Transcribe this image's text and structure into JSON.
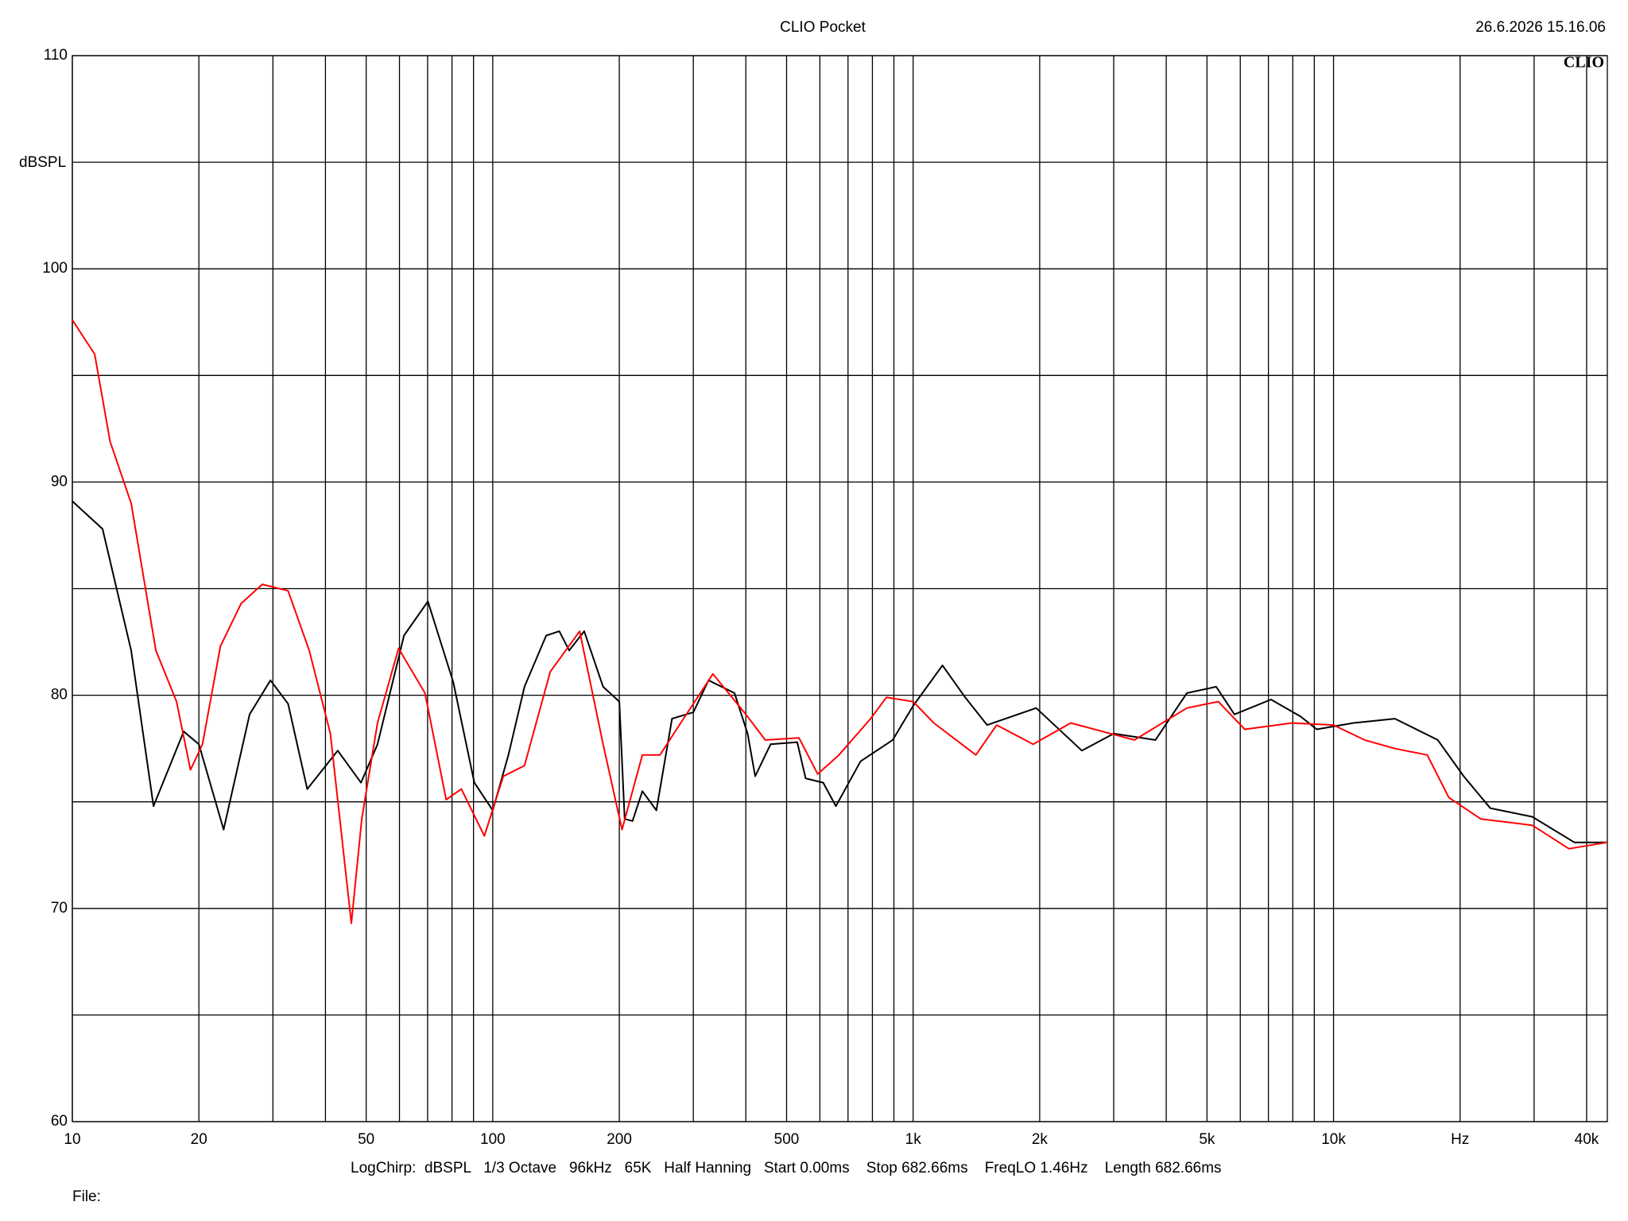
{
  "chart_data": {
    "type": "line",
    "title": "CLIO Pocket",
    "timestamp": "26.6.2026 15.16.06",
    "logo": "CLIO",
    "y_label": "dBSPL",
    "footer": "LogChirp:  dBSPL   1/3 Octave   96kHz   65K   Half Hanning   Start 0.00ms    Stop 682.66ms    FreqLO 1.46Hz    Length 682.66ms",
    "file_label": "File:",
    "xscale": "log",
    "grid": true,
    "xlim": [
      10,
      44800
    ],
    "ylim": [
      60,
      110
    ],
    "yticks": [
      60,
      70,
      80,
      90,
      100,
      110
    ],
    "yminor": [
      65,
      75,
      85,
      95,
      105
    ],
    "xticks": [
      10,
      20,
      50,
      100,
      200,
      500,
      {
        "value": 1000,
        "label": "1k"
      },
      {
        "value": 2000,
        "label": "2k"
      },
      {
        "value": 5000,
        "label": "5k"
      },
      {
        "value": 10000,
        "label": "10k"
      },
      {
        "value": 20000,
        "label": "Hz"
      },
      {
        "value": 40000,
        "label": "40k"
      }
    ],
    "xminor": [
      30,
      40,
      60,
      70,
      80,
      90,
      300,
      400,
      600,
      700,
      800,
      900,
      3000,
      4000,
      6000,
      7000,
      8000,
      9000,
      30000
    ],
    "series": [
      {
        "color": "#000000",
        "x": [
          10,
          11.8,
          13.8,
          15.6,
          18.4,
          20,
          22.9,
          26.4,
          29.6,
          32.6,
          36.2,
          42.8,
          48.6,
          53.2,
          61.5,
          70.1,
          80.6,
          90.4,
          100,
          109,
          119,
          134,
          144,
          152,
          165,
          183,
          200,
          206,
          215,
          227,
          245,
          267,
          300,
          326,
          376,
          404,
          421,
          458,
          530,
          555,
          611,
          655,
          750,
          894,
          1000,
          1174,
          1330,
          1500,
          1962,
          2520,
          3000,
          3770,
          4480,
          5260,
          5810,
          7100,
          8350,
          9120,
          11150,
          14000,
          17700,
          20400,
          23600,
          29700,
          37400,
          44800
        ],
        "values": [
          89.1,
          87.8,
          82.1,
          74.8,
          78.3,
          77.7,
          73.7,
          79.1,
          80.7,
          79.6,
          75.6,
          77.4,
          75.9,
          77.7,
          82.8,
          84.4,
          80.6,
          75.9,
          74.6,
          77.2,
          80.4,
          82.8,
          83.0,
          82.1,
          83.0,
          80.4,
          79.7,
          74.2,
          74.1,
          75.5,
          74.6,
          78.9,
          79.2,
          80.7,
          80.1,
          78.2,
          76.2,
          77.7,
          77.8,
          76.1,
          75.9,
          74.8,
          76.9,
          77.9,
          79.5,
          81.4,
          79.9,
          78.6,
          79.4,
          77.4,
          78.2,
          77.9,
          80.1,
          80.4,
          79.1,
          79.8,
          79.0,
          78.4,
          78.7,
          78.9,
          77.9,
          76.2,
          74.7,
          74.3,
          73.1,
          73.1
        ]
      },
      {
        "color": "#ff0000",
        "x": [
          10,
          11.3,
          12.3,
          13.8,
          15.8,
          17.7,
          19.1,
          20.4,
          22.5,
          25.2,
          28.3,
          32.6,
          36.6,
          41.1,
          46.1,
          48.8,
          53.2,
          59.7,
          69,
          77.5,
          84.2,
          95.5,
          106,
          119,
          137,
          161,
          183,
          203,
          227,
          250,
          280,
          334,
          400,
          445,
          535,
          593,
          666,
          792,
          864,
          1000,
          1120,
          1410,
          1580,
          1930,
          2370,
          3360,
          4480,
          5320,
          6150,
          7960,
          10000,
          11860,
          14000,
          16700,
          18800,
          22400,
          29700,
          36300,
          44800
        ],
        "values": [
          97.6,
          96.0,
          91.9,
          89.0,
          82.1,
          79.7,
          76.5,
          77.7,
          82.3,
          84.3,
          85.2,
          84.9,
          82.1,
          78.2,
          69.3,
          74.2,
          78.7,
          82.2,
          80.1,
          75.1,
          75.6,
          73.4,
          76.2,
          76.7,
          81.1,
          83.0,
          77.7,
          73.7,
          77.2,
          77.2,
          78.7,
          81.0,
          79.1,
          77.9,
          78.0,
          76.3,
          77.2,
          78.9,
          79.9,
          79.7,
          78.7,
          77.2,
          78.6,
          77.7,
          78.7,
          77.9,
          79.4,
          79.7,
          78.4,
          78.7,
          78.6,
          77.9,
          77.5,
          77.2,
          75.2,
          74.2,
          73.9,
          72.8,
          73.1
        ]
      }
    ]
  }
}
